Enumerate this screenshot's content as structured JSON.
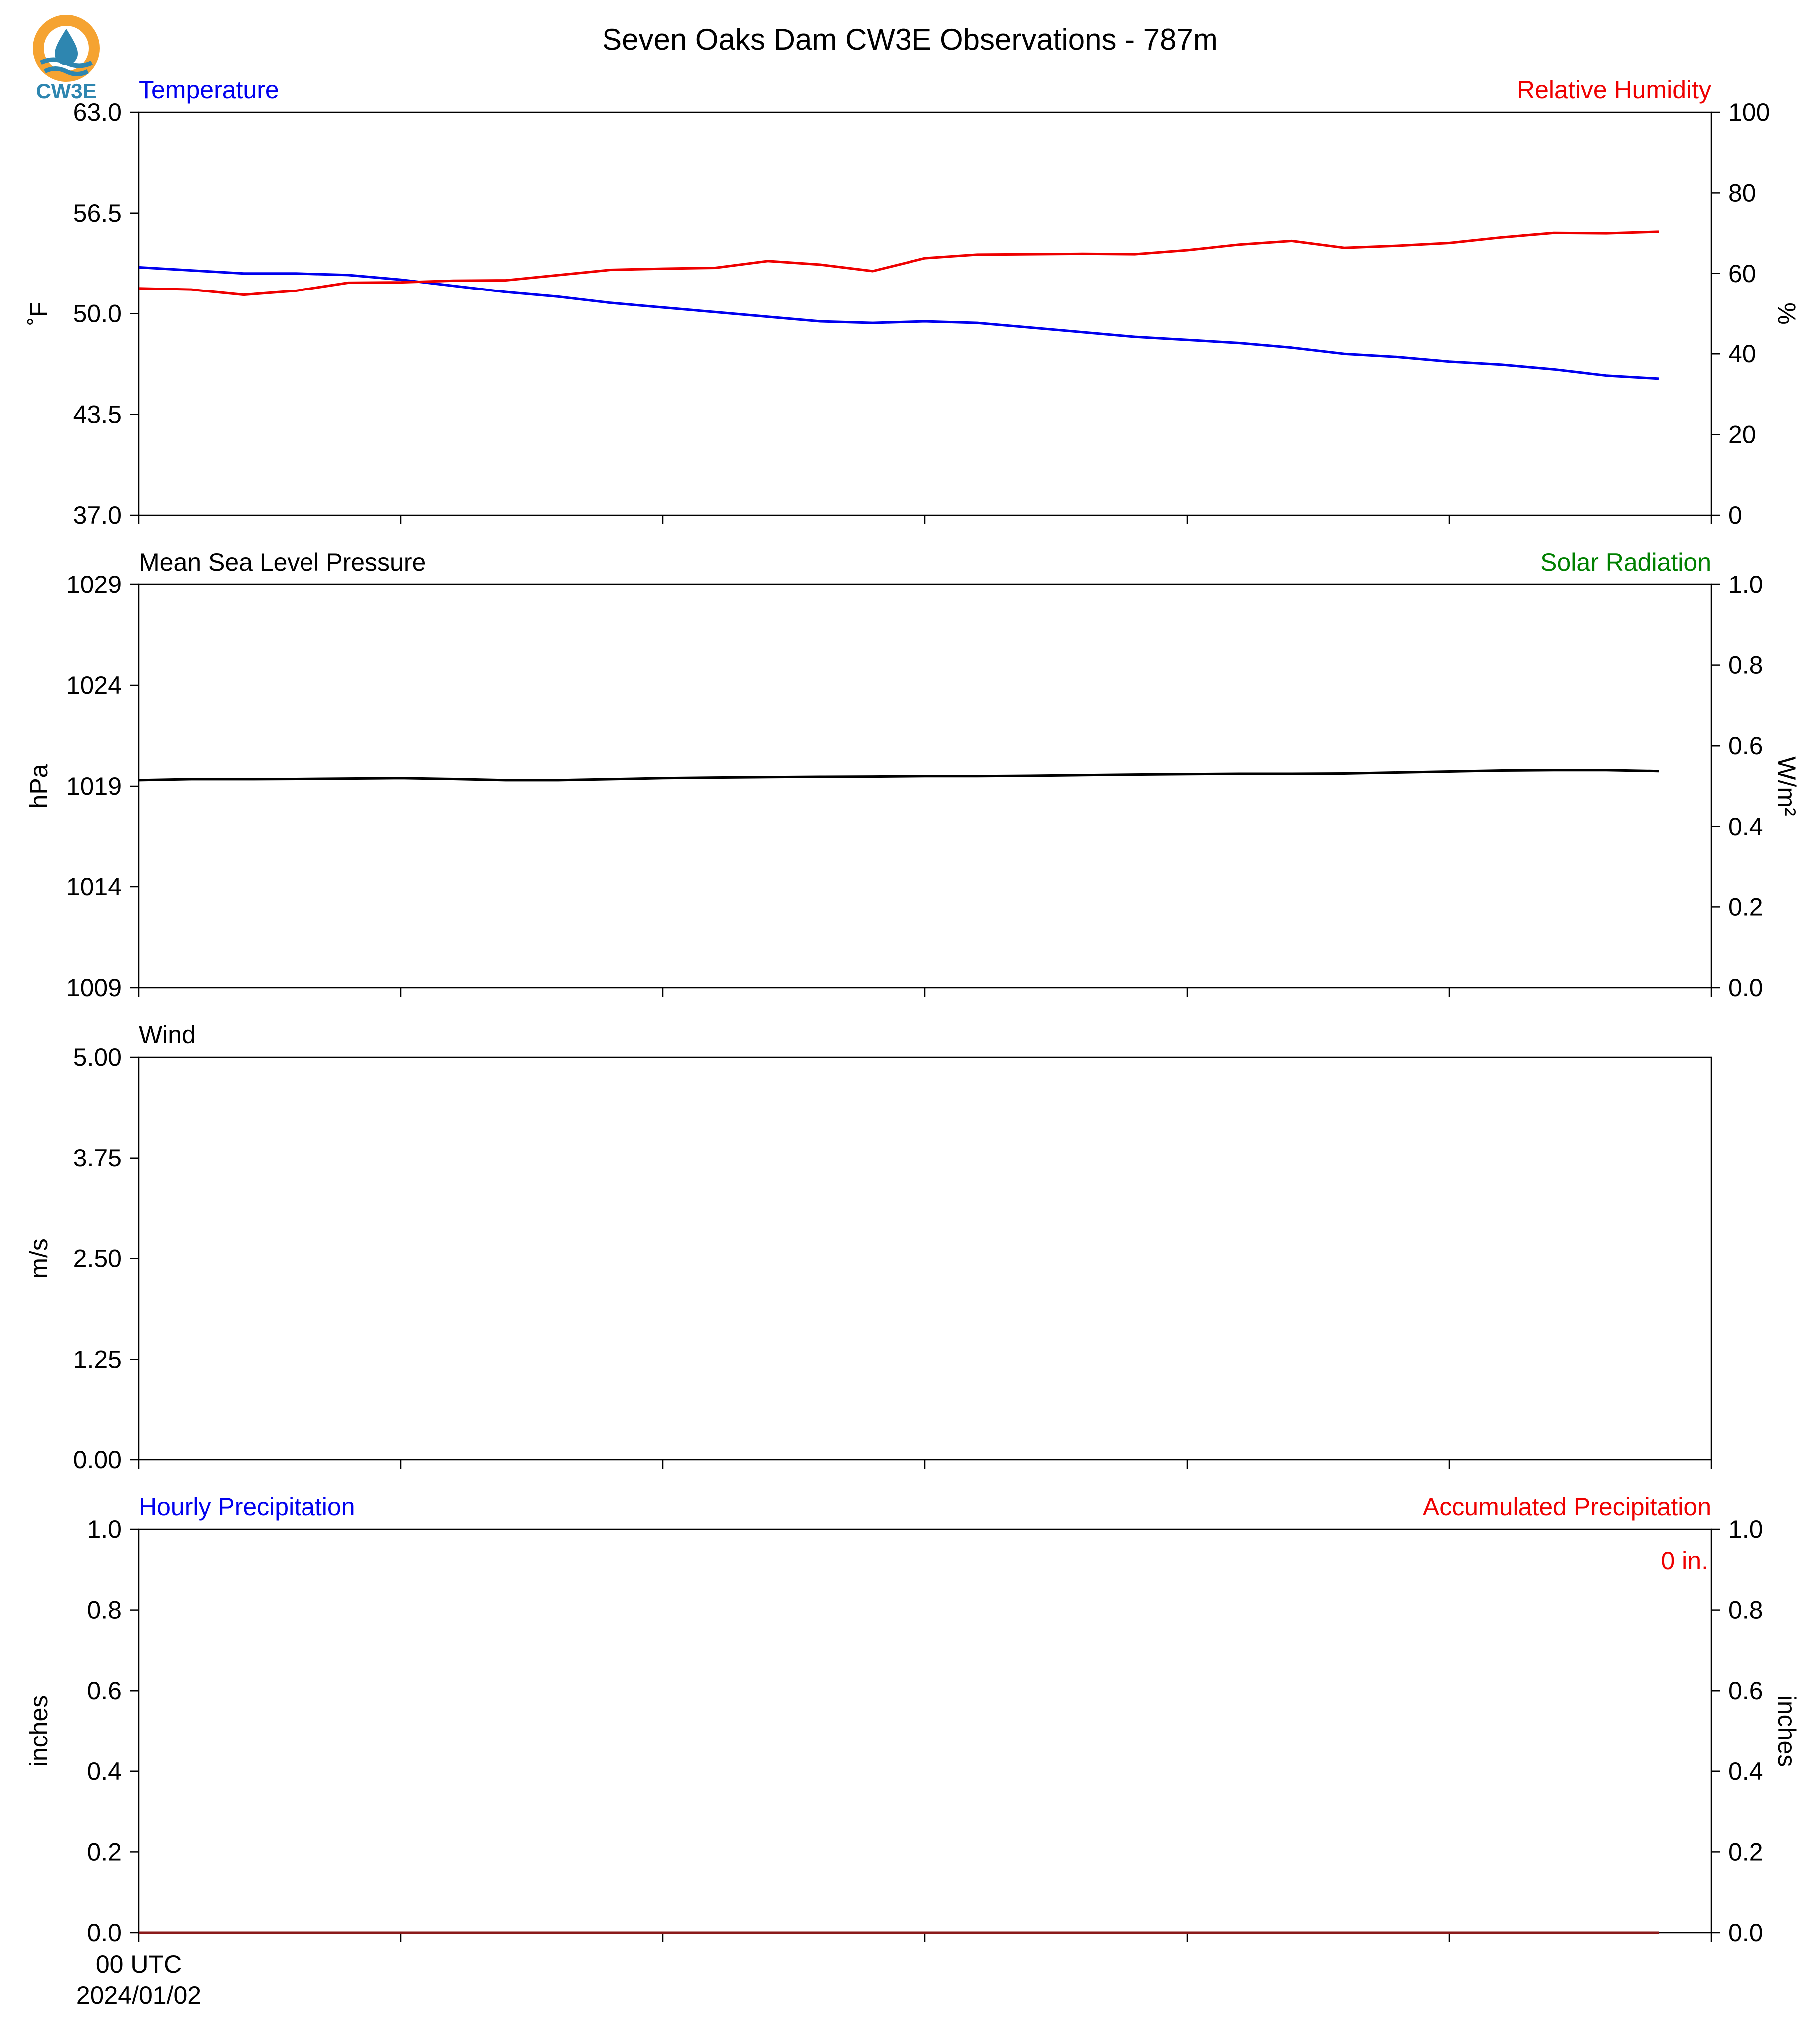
{
  "title": "Seven Oaks Dam CW3E Observations - 787m",
  "logo": {
    "text": "CW3E",
    "colors": {
      "ring": "#f5a331",
      "drop": "#2e86b0",
      "waves": "#2e86b0",
      "text": "#2e86b0"
    }
  },
  "colors": {
    "temperature": "#0000ee",
    "humidity": "#ee0000",
    "pressure": "#000000",
    "solar": "#008000",
    "wind": "#000000",
    "hourly_precip": "#0000ee",
    "accum_precip": "#ee0000",
    "precip_line": "#8b1a1a"
  },
  "x_axis": {
    "first_tick_label": "00 UTC",
    "first_tick_date": "2024/01/02",
    "ticks_hours": [
      0,
      6,
      12,
      18,
      24,
      30,
      36
    ]
  },
  "chart_data": [
    {
      "type": "line",
      "title_left": "Temperature",
      "title_right": "Relative Humidity",
      "ylabel": "˚F",
      "ylabel_right": "%",
      "ylim": [
        37.0,
        63.0
      ],
      "ylim_right": [
        0,
        100
      ],
      "yticks": [
        "37.0",
        "43.5",
        "50.0",
        "56.5",
        "63.0"
      ],
      "yticks_right": [
        "0",
        "20",
        "40",
        "60",
        "80",
        "100"
      ],
      "x": [
        0,
        1.2,
        2.4,
        3.6,
        4.8,
        6.0,
        7.2,
        8.4,
        9.6,
        10.8,
        12.0,
        13.2,
        14.4,
        15.6,
        16.8,
        18.0,
        19.2,
        20.4,
        21.6,
        22.8,
        24.0,
        25.2,
        26.4,
        27.6,
        28.8,
        30.0,
        31.2,
        32.4,
        33.6,
        34.8
      ],
      "series": [
        {
          "name": "Temperature",
          "axis": "left",
          "values": [
            53.0,
            52.8,
            52.6,
            52.6,
            52.5,
            52.2,
            51.8,
            51.4,
            51.1,
            50.7,
            50.4,
            50.1,
            49.8,
            49.5,
            49.4,
            49.5,
            49.4,
            49.1,
            48.8,
            48.5,
            48.3,
            48.1,
            47.8,
            47.4,
            47.2,
            46.9,
            46.7,
            46.4,
            46.0,
            45.8
          ]
        },
        {
          "name": "Relative Humidity",
          "axis": "right",
          "values": [
            56.3,
            56.0,
            54.7,
            55.7,
            57.7,
            57.8,
            58.2,
            58.3,
            59.6,
            60.9,
            61.2,
            61.4,
            63.1,
            62.2,
            60.6,
            63.8,
            64.7,
            64.8,
            64.9,
            64.8,
            65.8,
            67.2,
            68.1,
            66.4,
            66.9,
            67.6,
            69.0,
            70.1,
            70.0,
            70.4
          ]
        }
      ]
    },
    {
      "type": "line",
      "title_left": "Mean Sea Level Pressure",
      "title_right": "Solar Radiation",
      "ylabel": "hPa",
      "ylabel_right": "W/m²",
      "ylim": [
        1009,
        1029
      ],
      "ylim_right": [
        0.0,
        1.0
      ],
      "yticks": [
        "1009",
        "1014",
        "1019",
        "1024",
        "1029"
      ],
      "yticks_right": [
        "0.0",
        "0.2",
        "0.4",
        "0.6",
        "0.8",
        "1.0"
      ],
      "x": [
        0,
        1.2,
        2.4,
        3.6,
        4.8,
        6.0,
        7.2,
        8.4,
        9.6,
        10.8,
        12.0,
        13.2,
        14.4,
        15.6,
        16.8,
        18.0,
        19.2,
        20.4,
        21.6,
        22.8,
        24.0,
        25.2,
        26.4,
        27.6,
        28.8,
        30.0,
        31.2,
        32.4,
        33.6,
        34.8
      ],
      "series": [
        {
          "name": "Mean Sea Level Pressure",
          "axis": "left",
          "values": [
            1019.3,
            1019.35,
            1019.35,
            1019.36,
            1019.38,
            1019.4,
            1019.36,
            1019.3,
            1019.3,
            1019.35,
            1019.4,
            1019.43,
            1019.45,
            1019.47,
            1019.48,
            1019.5,
            1019.5,
            1019.52,
            1019.55,
            1019.58,
            1019.6,
            1019.62,
            1019.62,
            1019.63,
            1019.68,
            1019.73,
            1019.78,
            1019.8,
            1019.8,
            1019.75
          ]
        }
      ]
    },
    {
      "type": "line",
      "title_left": "Wind",
      "ylabel": "m/s",
      "ylim": [
        0.0,
        5.0
      ],
      "yticks": [
        "0.00",
        "1.25",
        "2.50",
        "3.75",
        "5.00"
      ],
      "series": []
    },
    {
      "type": "bar",
      "title_left": "Hourly Precipitation",
      "title_right": "Accumulated Precipitation",
      "annotation": "0 in.",
      "ylabel": "inches",
      "ylabel_right": "inches",
      "ylim": [
        0.0,
        1.0
      ],
      "ylim_right": [
        0.0,
        1.0
      ],
      "yticks": [
        "0.0",
        "0.2",
        "0.4",
        "0.6",
        "0.8",
        "1.0"
      ],
      "yticks_right": [
        "0.0",
        "0.2",
        "0.4",
        "0.6",
        "0.8",
        "1.0"
      ],
      "x": [
        0,
        34.8
      ],
      "series": [
        {
          "name": "Accumulated Precipitation",
          "axis": "right",
          "values": [
            0.0,
            0.0
          ]
        }
      ]
    }
  ]
}
